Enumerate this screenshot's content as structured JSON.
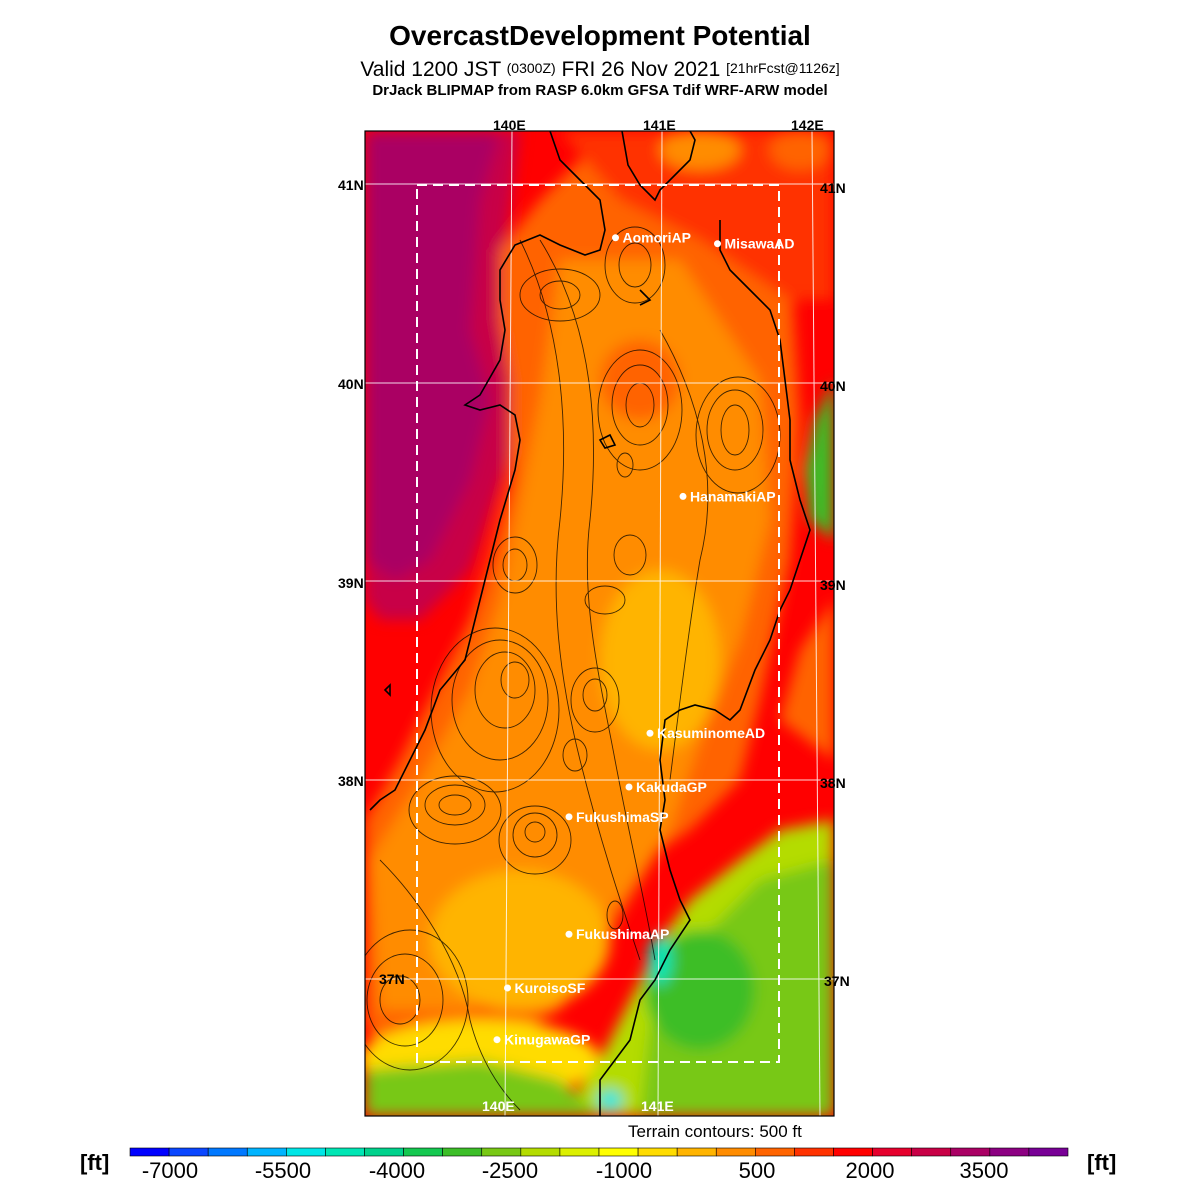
{
  "header": {
    "title": "OvercastDevelopment Potential",
    "valid_prefix": "Valid 1200 JST",
    "valid_utc": "(0300Z)",
    "valid_date": "FRI 26 Nov 2021",
    "forecast_info": "[21hrFcst@1126z]",
    "model_line": "DrJack BLIPMAP from RASP 6.0km GFSA Tdif WRF-ARW model"
  },
  "map": {
    "lon_labels_top": [
      "140E",
      "141E",
      "142E"
    ],
    "lon_labels_bottom": [
      "140E",
      "141E"
    ],
    "lat_labels": [
      "41N",
      "40N",
      "39N",
      "38N",
      "37N"
    ],
    "sites": [
      {
        "name": "AomoriAP",
        "lat": 40.73,
        "lon": 140.69
      },
      {
        "name": "MisawaAD",
        "lat": 40.7,
        "lon": 141.37
      },
      {
        "name": "HanamakiAP",
        "lat": 39.43,
        "lon": 141.14
      },
      {
        "name": "KasuminomeAD",
        "lat": 38.24,
        "lon": 140.92
      },
      {
        "name": "KakudaGP",
        "lat": 37.97,
        "lon": 140.78
      },
      {
        "name": "FukushimaSP",
        "lat": 37.82,
        "lon": 140.38
      },
      {
        "name": "FukushimaAP",
        "lat": 37.23,
        "lon": 140.38
      },
      {
        "name": "KuroisoSF",
        "lat": 36.96,
        "lon": 139.97
      },
      {
        "name": "KinugawaGP",
        "lat": 36.7,
        "lon": 139.9
      }
    ],
    "terrain_note": "Terrain contours: 500 ft"
  },
  "colorbar": {
    "unit": "[ft]",
    "labels": [
      "-7000",
      "-5500",
      "-4000",
      "-2500",
      "-1000",
      "500",
      "2000",
      "3500"
    ],
    "colors": [
      "#0000ff",
      "#0a46ff",
      "#0078ff",
      "#00b4ff",
      "#00e6e6",
      "#00e6b4",
      "#00d28c",
      "#14c850",
      "#3cbe28",
      "#78c814",
      "#b4dc00",
      "#dcf000",
      "#ffff00",
      "#ffdc00",
      "#ffb400",
      "#ff8c00",
      "#ff6400",
      "#ff3200",
      "#ff0000",
      "#e6002d",
      "#c80046",
      "#aa0064",
      "#8c0082",
      "#780096"
    ]
  },
  "colors": {
    "map_background": "#ff0000",
    "coast_line": "#000000",
    "grid_line": "#ffffff"
  }
}
